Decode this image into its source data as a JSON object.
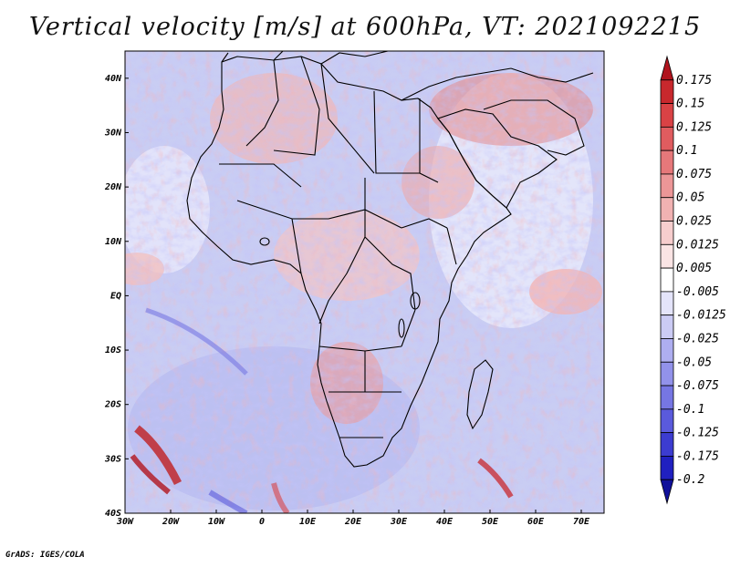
{
  "title": "Vertical velocity [m/s] at 600hPa, VT: 2021092215",
  "credit": "GrADS: IGES/COLA",
  "map": {
    "lon_labels": [
      "30W",
      "20W",
      "10W",
      "0",
      "10E",
      "20E",
      "30E",
      "40E",
      "50E",
      "60E",
      "70E"
    ],
    "lat_labels": [
      "40N",
      "30N",
      "20N",
      "10N",
      "EQ",
      "10S",
      "20S",
      "30S",
      "40S"
    ],
    "lon_range": [
      -30,
      75
    ],
    "lat_range": [
      -40,
      45
    ]
  },
  "colorbar": {
    "levels": [
      "0.175",
      "0.15",
      "0.125",
      "0.1",
      "0.075",
      "0.05",
      "0.025",
      "0.0125",
      "0.005",
      "-0.005",
      "-0.0125",
      "-0.025",
      "-0.05",
      "-0.075",
      "-0.1",
      "-0.125",
      "-0.175",
      "-0.2"
    ],
    "colors": [
      "#b0141e",
      "#c8282d",
      "#d94245",
      "#e05c5f",
      "#e6787a",
      "#ec9697",
      "#f1b2b2",
      "#f6cdcd",
      "#fae4e4",
      "#ffffff",
      "#e4e4fa",
      "#cbcbf4",
      "#aeaef0",
      "#9292ea",
      "#7676e3",
      "#5a5adc",
      "#3c3cd0",
      "#2020c0",
      "#10109a"
    ]
  }
}
